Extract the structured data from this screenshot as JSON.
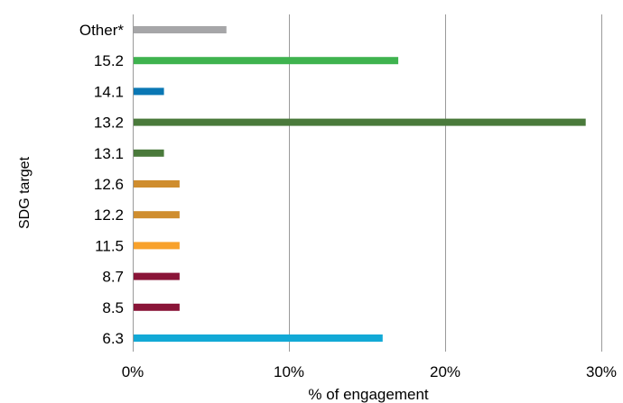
{
  "chart_data": {
    "type": "bar",
    "orientation": "horizontal",
    "xlabel": "% of engagement",
    "ylabel": "SDG target",
    "xlim": [
      0,
      30
    ],
    "x_ticks": [
      "0%",
      "10%",
      "20%",
      "30%"
    ],
    "x_tick_values": [
      0,
      10,
      20,
      30
    ],
    "grid": "vertical gridlines",
    "categories": [
      "Other*",
      "15.2",
      "14.1",
      "13.2",
      "13.1",
      "12.6",
      "12.2",
      "11.5",
      "8.7",
      "8.5",
      "6.3"
    ],
    "values": [
      6,
      17,
      2,
      29,
      2,
      3,
      3,
      3,
      3,
      3,
      16
    ],
    "colors": [
      "#a6a6a8",
      "#3fb34f",
      "#0a77b4",
      "#4a7a3b",
      "#4a7a3b",
      "#cf8d2e",
      "#cf8d2e",
      "#f8a12b",
      "#8a1538",
      "#8a1538",
      "#12a9d6"
    ]
  }
}
